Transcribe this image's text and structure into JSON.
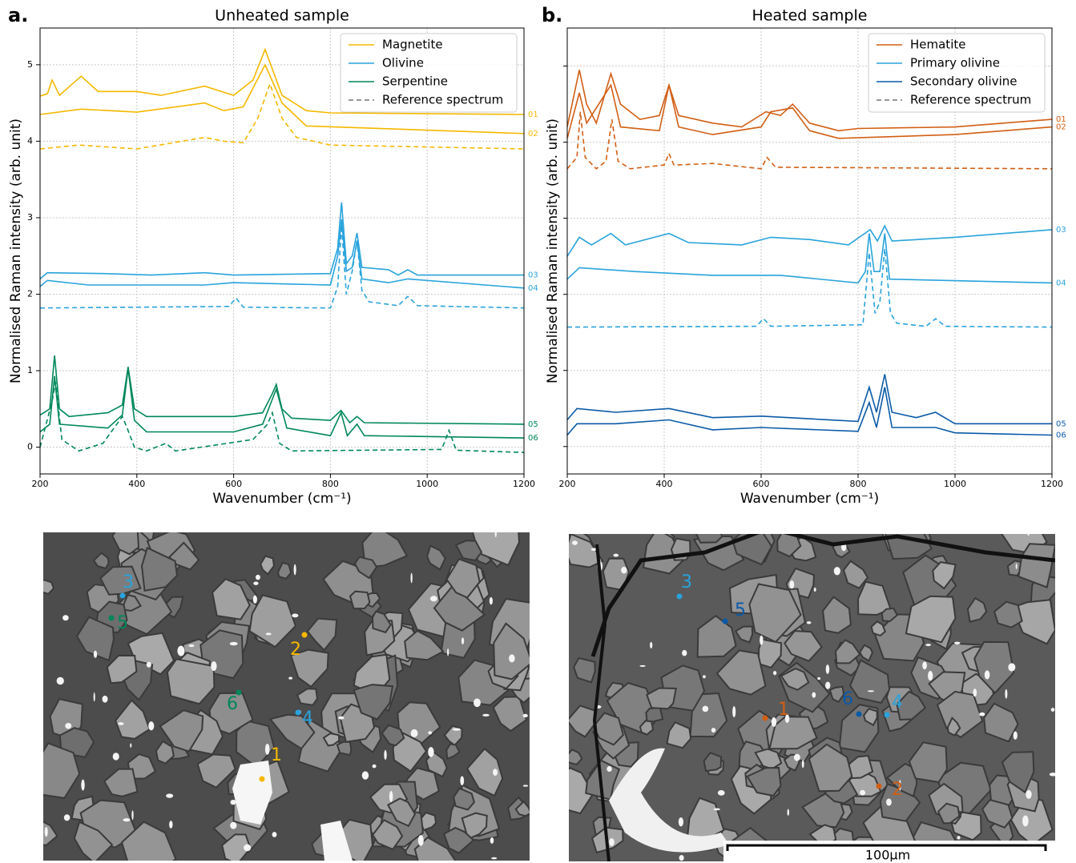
{
  "chart_data": [
    {
      "type": "line",
      "panel_label": "a.",
      "title": "Unheated sample",
      "xlabel": "Wavenumber (cm⁻¹)",
      "ylabel": "Normalised Raman intensity (arb. unit)",
      "xlim": [
        200,
        1200
      ],
      "xticks": [
        200,
        400,
        600,
        800,
        1000,
        1200
      ],
      "ylim": [
        -0.35,
        5.48
      ],
      "yticks": [
        0,
        1,
        2,
        3,
        4,
        5
      ],
      "ytick_labels": true,
      "grid": true,
      "legend": {
        "position": "upper right",
        "entries": [
          {
            "name": "Magnetite",
            "color": "#f5b800"
          },
          {
            "name": "Olivine",
            "color": "#29a3dc"
          },
          {
            "name": "Serpentine",
            "color": "#00875a"
          },
          {
            "name": "Reference spectrum",
            "color": "#777777",
            "dashed": true
          }
        ]
      },
      "series": [
        {
          "name": "01",
          "color": "#f5b800",
          "x": [
            200,
            215,
            225,
            240,
            285,
            320,
            400,
            450,
            540,
            600,
            640,
            665,
            700,
            750,
            800,
            1200
          ],
          "values": [
            4.59,
            4.62,
            4.8,
            4.6,
            4.85,
            4.65,
            4.65,
            4.6,
            4.72,
            4.6,
            4.8,
            5.2,
            4.6,
            4.4,
            4.37,
            4.35
          ]
        },
        {
          "name": "02",
          "color": "#f5b800",
          "x": [
            200,
            285,
            400,
            540,
            580,
            620,
            665,
            700,
            750,
            1200
          ],
          "values": [
            4.35,
            4.42,
            4.38,
            4.5,
            4.4,
            4.45,
            5.0,
            4.5,
            4.2,
            4.1
          ]
        },
        {
          "color": "#f5b800",
          "dashed": true,
          "x": [
            200,
            280,
            400,
            540,
            580,
            620,
            650,
            675,
            700,
            730,
            800,
            1200
          ],
          "values": [
            3.9,
            3.95,
            3.9,
            4.05,
            4.0,
            3.98,
            4.3,
            4.75,
            4.3,
            4.05,
            3.95,
            3.9
          ]
        },
        {
          "name": "03",
          "color": "#29a3dc",
          "x": [
            200,
            215,
            330,
            430,
            540,
            600,
            800,
            815,
            823,
            833,
            845,
            855,
            865,
            920,
            940,
            960,
            980,
            1200
          ],
          "values": [
            2.2,
            2.28,
            2.27,
            2.25,
            2.28,
            2.25,
            2.27,
            2.6,
            3.2,
            2.4,
            2.5,
            2.8,
            2.35,
            2.32,
            2.25,
            2.32,
            2.25,
            2.25
          ]
        },
        {
          "name": "04",
          "color": "#29a3dc",
          "x": [
            200,
            215,
            300,
            540,
            600,
            800,
            815,
            823,
            833,
            845,
            855,
            865,
            920,
            960,
            1200
          ],
          "values": [
            2.1,
            2.18,
            2.12,
            2.12,
            2.15,
            2.12,
            2.5,
            2.98,
            2.3,
            2.35,
            2.7,
            2.2,
            2.15,
            2.2,
            2.08
          ]
        },
        {
          "color": "#29a3dc",
          "dashed": true,
          "x": [
            200,
            590,
            605,
            620,
            800,
            815,
            823,
            833,
            845,
            855,
            865,
            880,
            940,
            960,
            980,
            1200
          ],
          "values": [
            1.82,
            1.84,
            1.95,
            1.83,
            1.82,
            2.1,
            2.9,
            2.0,
            2.3,
            2.7,
            2.05,
            1.9,
            1.85,
            1.97,
            1.85,
            1.82
          ]
        },
        {
          "name": "05",
          "color": "#00875a",
          "x": [
            200,
            220,
            230,
            240,
            260,
            340,
            370,
            382,
            395,
            420,
            600,
            660,
            680,
            688,
            700,
            720,
            800,
            822,
            840,
            855,
            870,
            1200
          ],
          "values": [
            0.42,
            0.5,
            1.2,
            0.5,
            0.4,
            0.45,
            0.55,
            1.05,
            0.5,
            0.4,
            0.4,
            0.45,
            0.7,
            0.82,
            0.5,
            0.38,
            0.35,
            0.48,
            0.32,
            0.4,
            0.32,
            0.3
          ]
        },
        {
          "name": "06",
          "color": "#00875a",
          "x": [
            200,
            220,
            230,
            240,
            340,
            370,
            382,
            395,
            420,
            600,
            660,
            688,
            710,
            800,
            822,
            835,
            855,
            870,
            1200
          ],
          "values": [
            0.2,
            0.3,
            0.93,
            0.3,
            0.25,
            0.42,
            1.03,
            0.35,
            0.2,
            0.2,
            0.3,
            0.76,
            0.25,
            0.15,
            0.45,
            0.15,
            0.3,
            0.15,
            0.12
          ]
        },
        {
          "color": "#00875a",
          "dashed": true,
          "x": [
            200,
            225,
            232,
            245,
            280,
            330,
            370,
            380,
            395,
            420,
            460,
            480,
            640,
            670,
            680,
            695,
            720,
            1030,
            1045,
            1060,
            1200
          ],
          "values": [
            0.0,
            0.6,
            0.85,
            0.1,
            -0.05,
            0.05,
            0.4,
            0.25,
            0.0,
            -0.05,
            0.05,
            -0.05,
            0.1,
            0.3,
            0.45,
            0.05,
            -0.05,
            -0.03,
            0.22,
            -0.04,
            -0.07
          ]
        }
      ]
    },
    {
      "type": "line",
      "panel_label": "b.",
      "title": "Heated sample",
      "xlabel": "Wavenumber (cm⁻¹)",
      "ylabel": "Normalised Raman intensity (arb. unit)",
      "xlim": [
        200,
        1200
      ],
      "xticks": [
        200,
        400,
        600,
        800,
        1000,
        1200
      ],
      "ylim": [
        -0.36,
        5.5
      ],
      "yticks": [
        0,
        1,
        2,
        3,
        4,
        5
      ],
      "ytick_labels": false,
      "grid": true,
      "legend": {
        "position": "upper right",
        "entries": [
          {
            "name": "Hematite",
            "color": "#d25e14"
          },
          {
            "name": "Primary olivine",
            "color": "#29a3dc"
          },
          {
            "name": "Secondary olivine",
            "color": "#0a5aa8"
          },
          {
            "name": "Reference spectrum",
            "color": "#777777",
            "dashed": true
          }
        ]
      },
      "series": [
        {
          "name": "01",
          "color": "#d25e14",
          "x": [
            200,
            225,
            240,
            260,
            290,
            310,
            350,
            390,
            410,
            430,
            500,
            560,
            610,
            640,
            665,
            700,
            760,
            800,
            1000,
            1100,
            1200
          ],
          "values": [
            4.2,
            4.95,
            4.5,
            4.25,
            4.9,
            4.5,
            4.3,
            4.35,
            4.75,
            4.35,
            4.25,
            4.2,
            4.4,
            4.35,
            4.5,
            4.25,
            4.15,
            4.18,
            4.2,
            4.25,
            4.3
          ]
        },
        {
          "name": "02",
          "color": "#d25e14",
          "x": [
            200,
            225,
            240,
            290,
            310,
            390,
            410,
            430,
            500,
            600,
            620,
            665,
            700,
            760,
            1000,
            1200
          ],
          "values": [
            4.05,
            4.65,
            4.25,
            4.75,
            4.2,
            4.15,
            4.75,
            4.2,
            4.1,
            4.2,
            4.4,
            4.45,
            4.15,
            4.05,
            4.1,
            4.2
          ]
        },
        {
          "color": "#d25e14",
          "dashed": true,
          "x": [
            200,
            220,
            227,
            237,
            260,
            280,
            292,
            305,
            330,
            400,
            410,
            420,
            500,
            600,
            612,
            630,
            1200
          ],
          "values": [
            3.65,
            3.8,
            4.4,
            3.8,
            3.65,
            3.75,
            4.3,
            3.75,
            3.65,
            3.7,
            3.85,
            3.7,
            3.72,
            3.65,
            3.8,
            3.67,
            3.65
          ]
        },
        {
          "name": "03",
          "color": "#29a3dc",
          "x": [
            200,
            225,
            250,
            290,
            320,
            410,
            450,
            560,
            620,
            700,
            780,
            825,
            840,
            855,
            870,
            1000,
            1200
          ],
          "values": [
            2.5,
            2.75,
            2.65,
            2.8,
            2.65,
            2.8,
            2.68,
            2.65,
            2.75,
            2.72,
            2.65,
            2.85,
            2.7,
            2.9,
            2.7,
            2.75,
            2.85
          ]
        },
        {
          "name": "04",
          "color": "#29a3dc",
          "x": [
            200,
            225,
            340,
            500,
            640,
            800,
            815,
            823,
            833,
            845,
            855,
            865,
            1200
          ],
          "values": [
            2.2,
            2.35,
            2.3,
            2.25,
            2.25,
            2.15,
            2.3,
            2.8,
            2.3,
            2.3,
            2.8,
            2.2,
            2.15
          ]
        },
        {
          "color": "#29a3dc",
          "dashed": true,
          "x": [
            200,
            590,
            605,
            620,
            810,
            823,
            835,
            845,
            855,
            867,
            880,
            940,
            960,
            980,
            1200
          ],
          "values": [
            1.57,
            1.58,
            1.68,
            1.58,
            1.6,
            2.55,
            1.75,
            1.9,
            2.6,
            1.75,
            1.62,
            1.58,
            1.68,
            1.58,
            1.57
          ]
        },
        {
          "name": "05",
          "color": "#0a5aa8",
          "x": [
            200,
            220,
            300,
            410,
            500,
            600,
            800,
            823,
            838,
            855,
            870,
            920,
            960,
            1000,
            1200
          ],
          "values": [
            0.35,
            0.5,
            0.45,
            0.5,
            0.38,
            0.4,
            0.33,
            0.78,
            0.45,
            0.95,
            0.45,
            0.38,
            0.45,
            0.3,
            0.3
          ]
        },
        {
          "name": "06",
          "color": "#0a5aa8",
          "x": [
            200,
            220,
            300,
            410,
            500,
            600,
            800,
            823,
            838,
            855,
            870,
            960,
            1000,
            1200
          ],
          "values": [
            0.15,
            0.3,
            0.3,
            0.35,
            0.22,
            0.25,
            0.2,
            0.58,
            0.25,
            0.78,
            0.25,
            0.25,
            0.18,
            0.15
          ]
        }
      ]
    }
  ],
  "images": [
    {
      "points": [
        {
          "label": "3",
          "color": "#29a3dc"
        },
        {
          "label": "5",
          "color": "#00875a"
        },
        {
          "label": "2",
          "color": "#f5b800"
        },
        {
          "label": "6",
          "color": "#00875a"
        },
        {
          "label": "4",
          "color": "#29a3dc"
        },
        {
          "label": "1",
          "color": "#f5b800"
        }
      ]
    },
    {
      "points": [
        {
          "label": "3",
          "color": "#29a3dc"
        },
        {
          "label": "5",
          "color": "#0a5aa8"
        },
        {
          "label": "1",
          "color": "#d25e14"
        },
        {
          "label": "6",
          "color": "#0a5aa8"
        },
        {
          "label": "4",
          "color": "#29a3dc"
        },
        {
          "label": "2",
          "color": "#d25e14"
        }
      ],
      "scale_bar": "100µm"
    }
  ]
}
